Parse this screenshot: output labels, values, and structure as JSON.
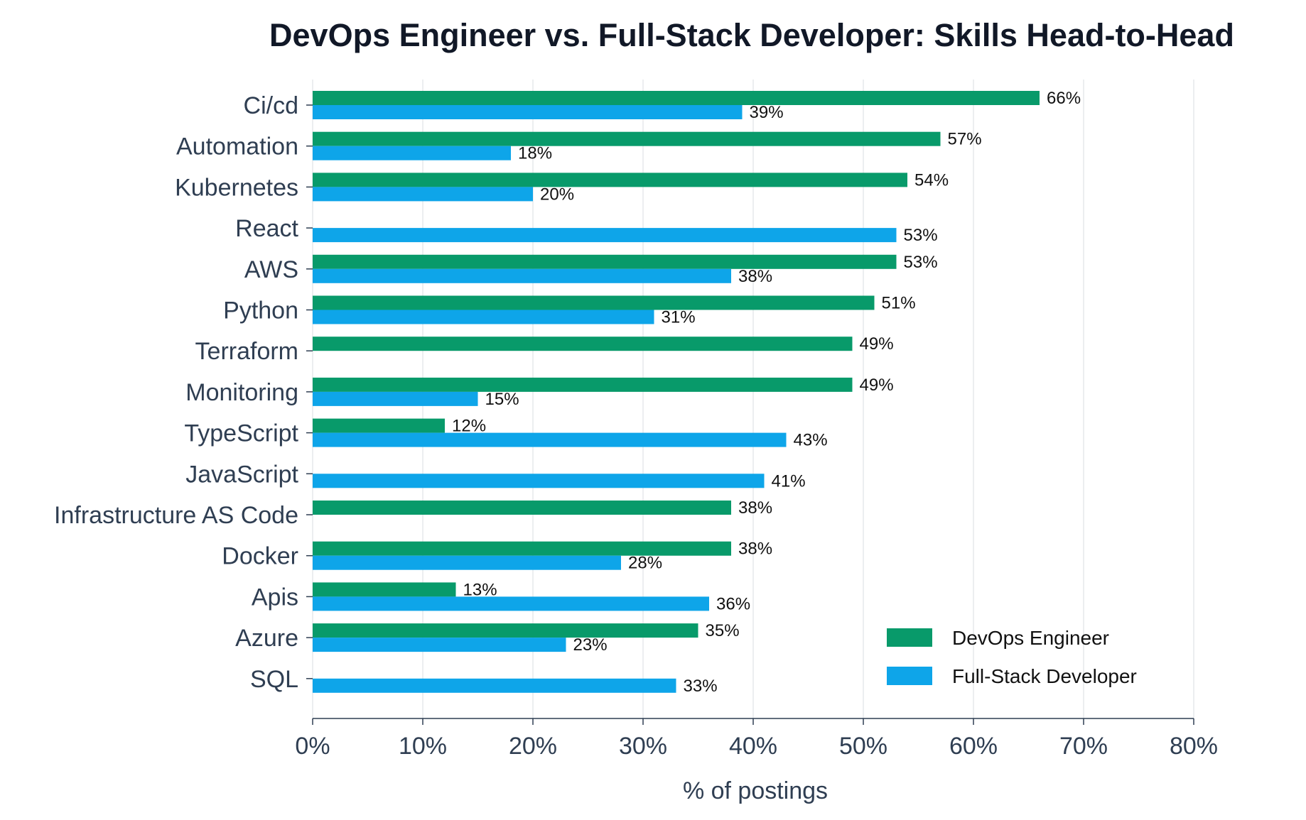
{
  "chart_data": {
    "type": "bar",
    "orientation": "horizontal",
    "title": "DevOps Engineer vs. Full-Stack Developer: Skills Head-to-Head",
    "xlabel": "% of postings",
    "ylabel": "",
    "xlim": [
      0,
      80
    ],
    "xticks": [
      0,
      10,
      20,
      30,
      40,
      50,
      60,
      70,
      80
    ],
    "xtick_labels": [
      "0%",
      "10%",
      "20%",
      "30%",
      "40%",
      "50%",
      "60%",
      "70%",
      "80%"
    ],
    "grid": "vertical",
    "legend_position": "bottom-right",
    "categories": [
      "Ci/cd",
      "Automation",
      "Kubernetes",
      "React",
      "AWS",
      "Python",
      "Terraform",
      "Monitoring",
      "TypeScript",
      "JavaScript",
      "Infrastructure AS Code",
      "Docker",
      "Apis",
      "Azure",
      "SQL"
    ],
    "series": [
      {
        "name": "DevOps Engineer",
        "color": "#089a6a",
        "values": [
          66,
          57,
          54,
          null,
          53,
          51,
          49,
          49,
          12,
          null,
          38,
          38,
          13,
          35,
          null
        ],
        "labels": [
          "66%",
          "57%",
          "54%",
          "",
          "53%",
          "51%",
          "49%",
          "49%",
          "12%",
          "",
          "38%",
          "38%",
          "13%",
          "35%",
          ""
        ]
      },
      {
        "name": "Full-Stack Developer",
        "color": "#0ea5e9",
        "values": [
          39,
          18,
          20,
          53,
          38,
          31,
          null,
          15,
          43,
          41,
          null,
          28,
          36,
          23,
          33
        ],
        "labels": [
          "39%",
          "18%",
          "20%",
          "53%",
          "38%",
          "31%",
          "",
          "15%",
          "43%",
          "41%",
          "",
          "28%",
          "36%",
          "23%",
          "33%"
        ]
      }
    ]
  }
}
